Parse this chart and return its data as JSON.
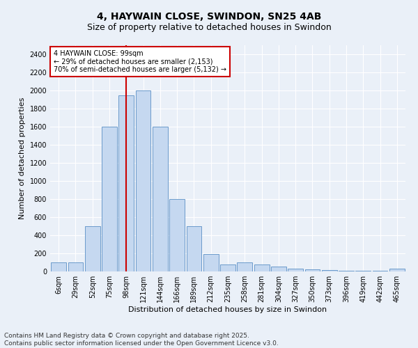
{
  "title": "4, HAYWAIN CLOSE, SWINDON, SN25 4AB",
  "subtitle": "Size of property relative to detached houses in Swindon",
  "xlabel": "Distribution of detached houses by size in Swindon",
  "ylabel": "Number of detached properties",
  "categories": [
    "6sqm",
    "29sqm",
    "52sqm",
    "75sqm",
    "98sqm",
    "121sqm",
    "144sqm",
    "166sqm",
    "189sqm",
    "212sqm",
    "235sqm",
    "258sqm",
    "281sqm",
    "304sqm",
    "327sqm",
    "350sqm",
    "373sqm",
    "396sqm",
    "419sqm",
    "442sqm",
    "465sqm"
  ],
  "values": [
    100,
    100,
    500,
    1600,
    1950,
    2000,
    1600,
    800,
    500,
    195,
    75,
    100,
    75,
    55,
    30,
    20,
    15,
    10,
    5,
    5,
    30
  ],
  "bar_color": "#c5d8f0",
  "bar_edge_color": "#5a8fc5",
  "vline_x_index": 4,
  "vline_color": "#cc0000",
  "ylim": [
    0,
    2500
  ],
  "yticks": [
    0,
    200,
    400,
    600,
    800,
    1000,
    1200,
    1400,
    1600,
    1800,
    2000,
    2200,
    2400
  ],
  "annotation_text": "4 HAYWAIN CLOSE: 99sqm\n← 29% of detached houses are smaller (2,153)\n70% of semi-detached houses are larger (5,132) →",
  "annotation_box_color": "#cc0000",
  "footer": "Contains HM Land Registry data © Crown copyright and database right 2025.\nContains public sector information licensed under the Open Government Licence v3.0.",
  "bg_color": "#eaf0f8",
  "plot_bg_color": "#eaf0f8",
  "title_fontsize": 10,
  "subtitle_fontsize": 9,
  "axis_fontsize": 8,
  "tick_fontsize": 7,
  "footer_fontsize": 6.5,
  "annot_fontsize": 7
}
